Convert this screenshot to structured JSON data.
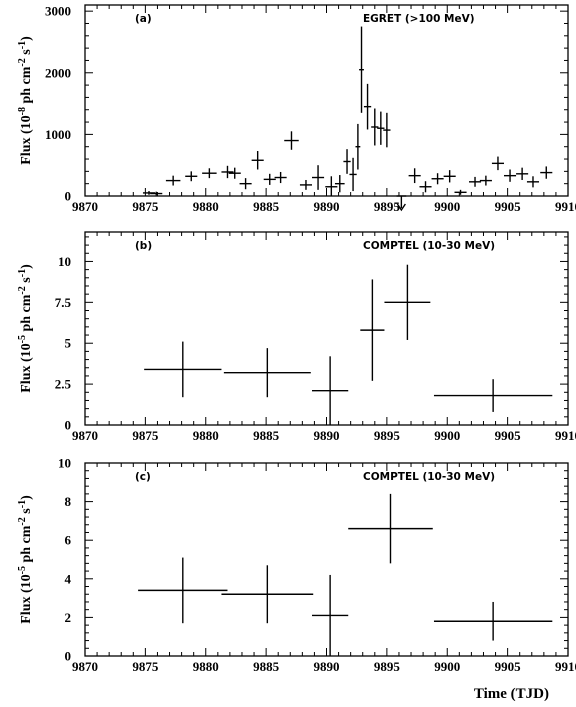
{
  "figure": {
    "xlabel": "Time (TJD)"
  },
  "chart_data": [
    {
      "type": "scatter",
      "panel_label": "(a)",
      "instrument_label": "EGRET (>100 MeV)",
      "ylabel": {
        "prefix": "Flux (10",
        "exp": "-8",
        "mid": " ph cm",
        "exp2": "-2",
        "mid2": " s",
        "exp3": "-1",
        "suffix": ")"
      },
      "xlim": [
        9870,
        9910
      ],
      "ylim": [
        0,
        3100
      ],
      "xticks": [
        9870,
        9875,
        9880,
        9885,
        9890,
        9895,
        9900,
        9905,
        9910
      ],
      "yticks": [
        0,
        1000,
        2000,
        3000
      ],
      "points": [
        {
          "x": 9875.3,
          "y": 50,
          "xerr": 0.5,
          "yerr": 30
        },
        {
          "x": 9875.9,
          "y": 40,
          "xerr": 0.5,
          "yerr": 30
        },
        {
          "x": 9877.3,
          "y": 250,
          "xerr": 0.6,
          "yerr": 80
        },
        {
          "x": 9878.8,
          "y": 320,
          "xerr": 0.5,
          "yerr": 80
        },
        {
          "x": 9880.3,
          "y": 370,
          "xerr": 0.6,
          "yerr": 80
        },
        {
          "x": 9881.8,
          "y": 390,
          "xerr": 0.5,
          "yerr": 100
        },
        {
          "x": 9882.4,
          "y": 370,
          "xerr": 0.5,
          "yerr": 90
        },
        {
          "x": 9883.3,
          "y": 200,
          "xerr": 0.5,
          "yerr": 90
        },
        {
          "x": 9884.3,
          "y": 580,
          "xerr": 0.5,
          "yerr": 150
        },
        {
          "x": 9885.3,
          "y": 270,
          "xerr": 0.5,
          "yerr": 90
        },
        {
          "x": 9886.2,
          "y": 300,
          "xerr": 0.5,
          "yerr": 90
        },
        {
          "x": 9887.1,
          "y": 900,
          "xerr": 0.6,
          "yerr": 150
        },
        {
          "x": 9888.3,
          "y": 180,
          "xerr": 0.5,
          "yerr": 80
        },
        {
          "x": 9889.3,
          "y": 300,
          "xerr": 0.5,
          "yerr": 200
        },
        {
          "x": 9890.4,
          "y": 150,
          "xerr": 0.5,
          "yerr": 170
        },
        {
          "x": 9891.1,
          "y": 200,
          "xerr": 0.4,
          "yerr": 140
        },
        {
          "x": 9891.7,
          "y": 560,
          "xerr": 0.3,
          "yerr": 200
        },
        {
          "x": 9892.2,
          "y": 350,
          "xerr": 0.3,
          "yerr": 270
        },
        {
          "x": 9892.6,
          "y": 800,
          "xerr": 0.2,
          "yerr": 370
        },
        {
          "x": 9892.9,
          "y": 2050,
          "xerr": 0.2,
          "yerr": 700
        },
        {
          "x": 9893.4,
          "y": 1450,
          "xerr": 0.3,
          "yerr": 370
        },
        {
          "x": 9894.0,
          "y": 1120,
          "xerr": 0.3,
          "yerr": 300
        },
        {
          "x": 9894.5,
          "y": 1100,
          "xerr": 0.3,
          "yerr": 270
        },
        {
          "x": 9895.0,
          "y": 1070,
          "xerr": 0.3,
          "yerr": 280
        },
        {
          "x": 9896.2,
          "y": 0,
          "xerr": 0.4,
          "yerr": 0,
          "upper_limit": true
        },
        {
          "x": 9897.3,
          "y": 330,
          "xerr": 0.5,
          "yerr": 120
        },
        {
          "x": 9898.2,
          "y": 150,
          "xerr": 0.5,
          "yerr": 90
        },
        {
          "x": 9899.2,
          "y": 280,
          "xerr": 0.5,
          "yerr": 90
        },
        {
          "x": 9900.2,
          "y": 320,
          "xerr": 0.5,
          "yerr": 100
        },
        {
          "x": 9901.1,
          "y": 60,
          "xerr": 0.5,
          "yerr": 40
        },
        {
          "x": 9902.3,
          "y": 230,
          "xerr": 0.5,
          "yerr": 80
        },
        {
          "x": 9903.2,
          "y": 250,
          "xerr": 0.5,
          "yerr": 80
        },
        {
          "x": 9904.2,
          "y": 530,
          "xerr": 0.5,
          "yerr": 110
        },
        {
          "x": 9905.2,
          "y": 330,
          "xerr": 0.5,
          "yerr": 100
        },
        {
          "x": 9906.2,
          "y": 360,
          "xerr": 0.5,
          "yerr": 100
        },
        {
          "x": 9907.1,
          "y": 230,
          "xerr": 0.5,
          "yerr": 90
        },
        {
          "x": 9908.2,
          "y": 380,
          "xerr": 0.5,
          "yerr": 100
        }
      ]
    },
    {
      "type": "scatter",
      "panel_label": "(b)",
      "instrument_label": "COMPTEL (10-30 MeV)",
      "ylabel": {
        "prefix": "Flux (10",
        "exp": "-5",
        "mid": " ph cm",
        "exp2": "-2",
        "mid2": " s",
        "exp3": "-1",
        "suffix": ")"
      },
      "xlim": [
        9870,
        9910
      ],
      "ylim": [
        0,
        11.8
      ],
      "xticks": [
        9870,
        9875,
        9880,
        9885,
        9890,
        9895,
        9900,
        9905,
        9910
      ],
      "yticks": [
        0,
        2.5,
        5,
        7.5,
        10
      ],
      "ytick_labels": [
        "0",
        "2.5",
        "5",
        "7.5",
        "10"
      ],
      "points": [
        {
          "x": 9878.1,
          "y": 3.4,
          "xerr": 3.2,
          "yerr": 1.7
        },
        {
          "x": 9885.1,
          "y": 3.2,
          "xerr": 3.6,
          "yerr": 1.5
        },
        {
          "x": 9890.3,
          "y": 2.1,
          "xerr": 1.5,
          "yerr": 2.1
        },
        {
          "x": 9893.8,
          "y": 5.8,
          "xerr": 1.0,
          "yerr": 3.1
        },
        {
          "x": 9896.7,
          "y": 7.5,
          "xerr": 1.9,
          "yerr": 2.3
        },
        {
          "x": 9903.8,
          "y": 1.8,
          "xerr": 4.9,
          "yerr": 1.0
        }
      ]
    },
    {
      "type": "scatter",
      "panel_label": "(c)",
      "instrument_label": "COMPTEL (10-30 MeV)",
      "ylabel": {
        "prefix": "Flux (10",
        "exp": "-5",
        "mid": " ph cm",
        "exp2": "-2",
        "mid2": " s",
        "exp3": "-1",
        "suffix": ")"
      },
      "xlim": [
        9870,
        9910
      ],
      "ylim": [
        0,
        10
      ],
      "xticks": [
        9870,
        9875,
        9880,
        9885,
        9890,
        9895,
        9900,
        9905,
        9910
      ],
      "yticks": [
        0,
        2,
        4,
        6,
        8,
        10
      ],
      "ytick_labels": [
        "0",
        "2",
        "4",
        "6",
        "8",
        "10"
      ],
      "points": [
        {
          "x": 9878.1,
          "y": 3.4,
          "xerr": 3.7,
          "yerr": 1.7
        },
        {
          "x": 9885.1,
          "y": 3.2,
          "xerr": 3.8,
          "yerr": 1.5
        },
        {
          "x": 9890.3,
          "y": 2.1,
          "xerr": 1.5,
          "yerr": 2.1
        },
        {
          "x": 9895.3,
          "y": 6.6,
          "xerr": 3.5,
          "yerr": 1.8
        },
        {
          "x": 9903.8,
          "y": 1.8,
          "xerr": 4.9,
          "yerr": 1.0
        }
      ]
    }
  ]
}
